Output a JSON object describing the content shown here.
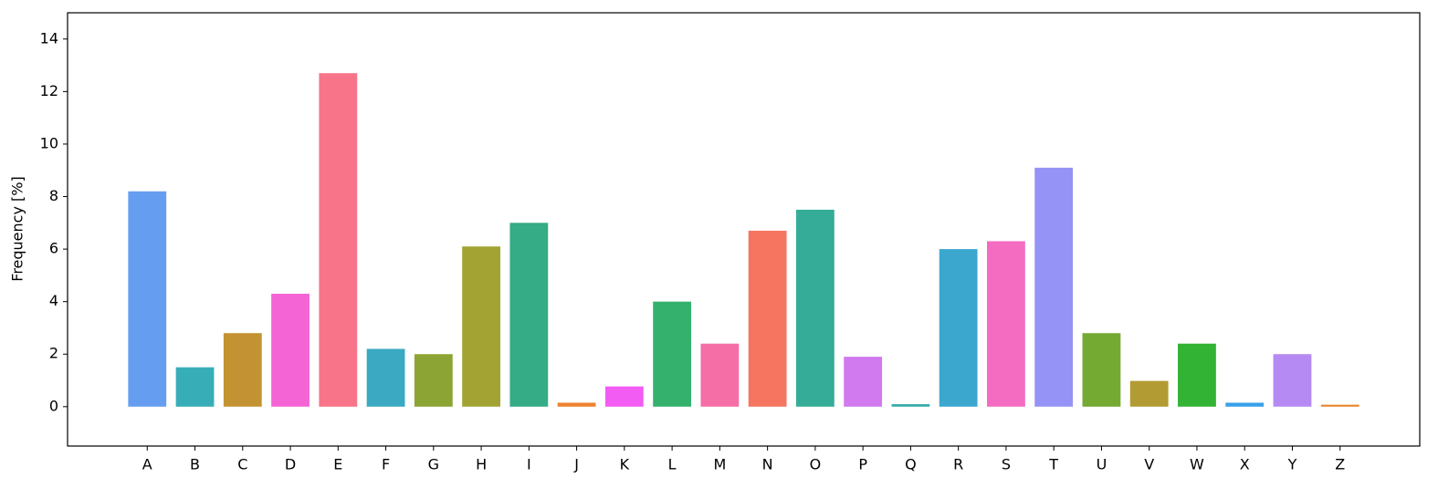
{
  "chart_data": {
    "type": "bar",
    "y_label": "Frequency [%]",
    "categories": [
      "A",
      "B",
      "C",
      "D",
      "E",
      "F",
      "G",
      "H",
      "I",
      "J",
      "K",
      "L",
      "M",
      "N",
      "O",
      "P",
      "Q",
      "R",
      "S",
      "T",
      "U",
      "V",
      "W",
      "X",
      "Y",
      "Z"
    ],
    "values": [
      8.2,
      1.5,
      2.8,
      4.3,
      12.7,
      2.2,
      2.0,
      6.1,
      7.0,
      0.15,
      0.77,
      4.0,
      2.4,
      6.7,
      7.5,
      1.9,
      0.095,
      6.0,
      6.3,
      9.1,
      2.8,
      0.98,
      2.4,
      0.15,
      2.0,
      0.074
    ],
    "colors": [
      "#659ef0",
      "#37aeb7",
      "#c39232",
      "#f564d4",
      "#f77489",
      "#3aa9c1",
      "#8ca433",
      "#a2a332",
      "#35ab86",
      "#ee8230",
      "#f35cf2",
      "#35b16e",
      "#f66ea6",
      "#f57561",
      "#35ac98",
      "#d179ee",
      "#36aca9",
      "#3ba7ce",
      "#f46bc2",
      "#9593f5",
      "#74aa32",
      "#b39b34",
      "#33b334",
      "#38a2e8",
      "#b58af2",
      "#e98530"
    ],
    "ylim": [
      -1.5,
      15
    ],
    "yticks": [
      0,
      2,
      4,
      6,
      8,
      10,
      12,
      14
    ],
    "grid": false
  }
}
